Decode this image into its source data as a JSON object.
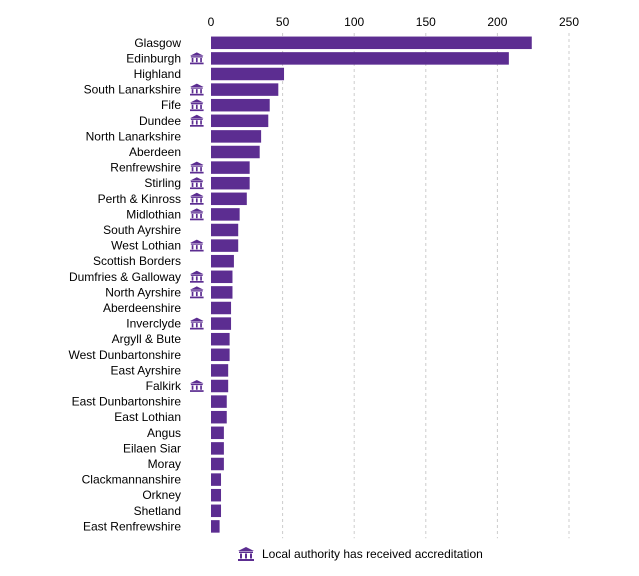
{
  "chart_data": {
    "type": "bar",
    "orientation": "horizontal",
    "categories": [
      "Glasgow",
      "Edinburgh",
      "Highland",
      "South Lanarkshire",
      "Fife",
      "Dundee",
      "North Lanarkshire",
      "Aberdeen",
      "Renfrewshire",
      "Stirling",
      "Perth & Kinross",
      "Midlothian",
      "South Ayrshire",
      "West Lothian",
      "Scottish Borders",
      "Dumfries & Galloway",
      "North Ayrshire",
      "Aberdeenshire",
      "Inverclyde",
      "Argyll & Bute",
      "West Dunbartonshire",
      "East Ayrshire",
      "Falkirk",
      "East Dunbartonshire",
      "East Lothian",
      "Angus",
      "Eilaen Siar",
      "Moray",
      "Clackmannanshire",
      "Orkney",
      "Shetland",
      "East Renfrewshire"
    ],
    "values": [
      224,
      208,
      51,
      47,
      41,
      40,
      35,
      34,
      27,
      27,
      25,
      20,
      19,
      19,
      16,
      15,
      15,
      14,
      14,
      13,
      13,
      12,
      12,
      11,
      11,
      9,
      9,
      9,
      7,
      7,
      7,
      6
    ],
    "accredited": [
      false,
      true,
      false,
      true,
      true,
      true,
      false,
      false,
      true,
      true,
      true,
      true,
      false,
      true,
      false,
      true,
      true,
      false,
      true,
      false,
      false,
      false,
      true,
      false,
      false,
      false,
      false,
      false,
      false,
      false,
      false,
      false
    ],
    "xlim": [
      0,
      250
    ],
    "xticks": [
      0,
      50,
      100,
      150,
      200,
      250
    ],
    "xtick_labels": [
      "0",
      "50",
      "100",
      "150",
      "200",
      "250"
    ],
    "grid": "vertical dashed",
    "bar_color": "#5c2d91",
    "legend": {
      "placement": "bottom",
      "icon": "bank-building-icon",
      "label": "Local authority has received accreditation"
    }
  },
  "colors": {
    "bar": "#5c2d91",
    "icon": "#5c2d91",
    "grid": "#cccccc"
  }
}
